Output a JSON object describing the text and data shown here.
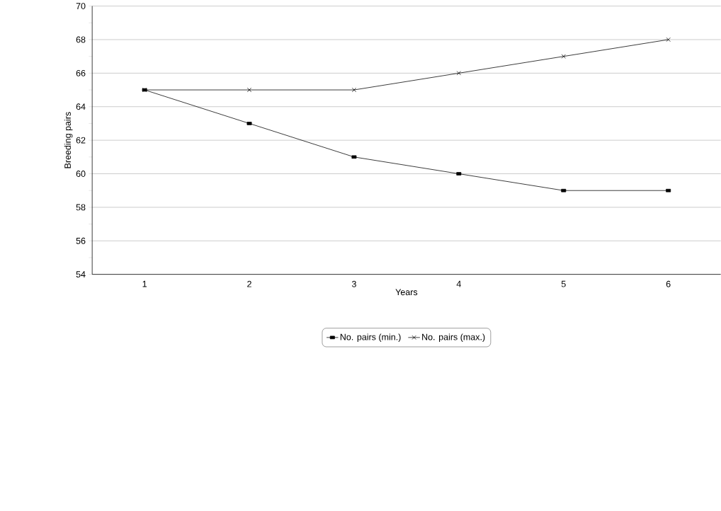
{
  "chart_data": {
    "type": "line",
    "xlabel": "Years",
    "ylabel": "Breeding pairs",
    "categories": [
      "1",
      "2",
      "3",
      "4",
      "5",
      "6"
    ],
    "series": [
      {
        "name": "No. pairs (min.)",
        "color": "#000000",
        "marker": "square",
        "values": [
          65,
          63,
          61,
          60,
          59,
          59
        ]
      },
      {
        "name": "No. pairs (max.)",
        "color": "#000000",
        "marker": "cross",
        "values": [
          65,
          65,
          65,
          66,
          67,
          68
        ]
      }
    ],
    "ylim": [
      54,
      70
    ],
    "yticks": [
      54,
      56,
      58,
      60,
      62,
      64,
      66,
      68,
      70
    ],
    "grid": "y",
    "legend": "bottom",
    "line_style": "solid"
  }
}
